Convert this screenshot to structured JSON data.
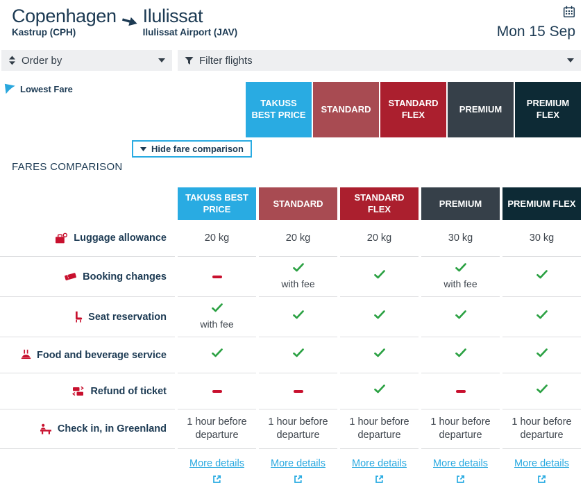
{
  "header": {
    "origin_city": "Copenhagen",
    "origin_airport": "Kastrup (CPH)",
    "destination_city": "Ilulissat",
    "destination_airport": "Ilulissat Airport (JAV)",
    "date": "Mon 15 Sep"
  },
  "toolbar": {
    "order_by_label": "Order by",
    "filter_label": "Filter flights"
  },
  "fare_band": {
    "lowest_fare_label": "Lowest Fare",
    "hide_comparison_label": "Hide fare comparison"
  },
  "colors": {
    "accent_cyan": "#29abe2",
    "brand_red": "#c8102e",
    "check_green": "#2ba143",
    "navy": "#1c3a53"
  },
  "fares": [
    {
      "name": "TAKUSS BEST PRICE",
      "color": "#29abe2"
    },
    {
      "name": "STANDARD",
      "color": "#a84b52"
    },
    {
      "name": "STANDARD FLEX",
      "color": "#ab1f2e"
    },
    {
      "name": "PREMIUM",
      "color": "#364049"
    },
    {
      "name": "PREMIUM FLEX",
      "color": "#0d2a35"
    }
  ],
  "comparison": {
    "title": "FARES COMPARISON",
    "more_details_label": "More details",
    "rows": [
      {
        "label": "Luggage allowance",
        "icon": "luggage-icon",
        "values": [
          {
            "text": "20 kg"
          },
          {
            "text": "20 kg"
          },
          {
            "text": "20 kg"
          },
          {
            "text": "30 kg"
          },
          {
            "text": "30 kg"
          }
        ]
      },
      {
        "label": "Booking changes",
        "icon": "ticket-icon",
        "values": [
          {
            "mark": "minus"
          },
          {
            "mark": "check",
            "note": "with fee"
          },
          {
            "mark": "check"
          },
          {
            "mark": "check",
            "note": "with fee"
          },
          {
            "mark": "check"
          }
        ]
      },
      {
        "label": "Seat reservation",
        "icon": "seat-icon",
        "values": [
          {
            "mark": "check",
            "note": "with fee"
          },
          {
            "mark": "check"
          },
          {
            "mark": "check"
          },
          {
            "mark": "check"
          },
          {
            "mark": "check"
          }
        ]
      },
      {
        "label": "Food and beverage service",
        "icon": "food-icon",
        "values": [
          {
            "mark": "check"
          },
          {
            "mark": "check"
          },
          {
            "mark": "check"
          },
          {
            "mark": "check"
          },
          {
            "mark": "check"
          }
        ]
      },
      {
        "label": "Refund of ticket",
        "icon": "refund-icon",
        "values": [
          {
            "mark": "minus"
          },
          {
            "mark": "minus"
          },
          {
            "mark": "check"
          },
          {
            "mark": "minus"
          },
          {
            "mark": "check"
          }
        ]
      },
      {
        "label": "Check in, in Greenland",
        "icon": "check-in-desk-icon",
        "values": [
          {
            "text": "1 hour before departure"
          },
          {
            "text": "1 hour before departure"
          },
          {
            "text": "1 hour before departure"
          },
          {
            "text": "1 hour before departure"
          },
          {
            "text": "1 hour before departure"
          }
        ]
      }
    ]
  }
}
